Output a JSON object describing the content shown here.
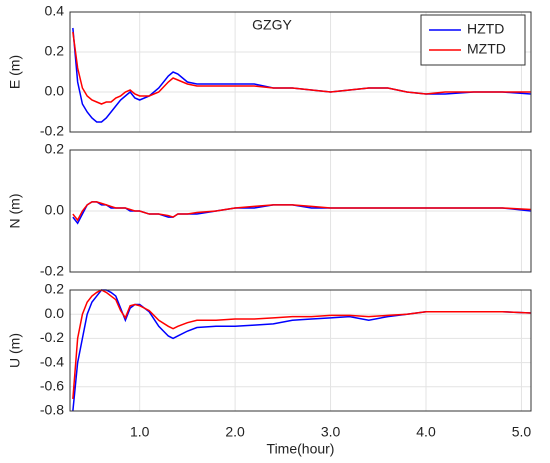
{
  "chart_data": [
    {
      "type": "line",
      "title": "GZGY",
      "ylabel": "E (m)",
      "grid": true,
      "legend": "upper right",
      "xlim": [
        0.27,
        5.1
      ],
      "xticks": [
        {
          "value": 1,
          "label": "1.0"
        },
        {
          "value": 2,
          "label": "2.0"
        },
        {
          "value": 3,
          "label": "3.0"
        },
        {
          "value": 4,
          "label": "4.0"
        },
        {
          "value": 5,
          "label": "5.0"
        }
      ],
      "ylim": [
        -0.2,
        0.4
      ],
      "yticks": [
        -0.2,
        {
          "value": 0,
          "label": "0.0"
        },
        0.2,
        0.4
      ],
      "x": [
        0.3,
        0.35,
        0.4,
        0.45,
        0.5,
        0.55,
        0.6,
        0.65,
        0.7,
        0.75,
        0.8,
        0.85,
        0.9,
        0.95,
        1.0,
        1.1,
        1.2,
        1.3,
        1.35,
        1.4,
        1.5,
        1.6,
        1.8,
        2.0,
        2.2,
        2.4,
        2.6,
        2.8,
        3.0,
        3.2,
        3.4,
        3.6,
        3.8,
        4.0,
        4.2,
        4.5,
        4.8,
        5.1
      ],
      "series": [
        {
          "name": "HZTD",
          "color": "#0000ff",
          "values": [
            0.32,
            0.05,
            -0.06,
            -0.1,
            -0.13,
            -0.15,
            -0.15,
            -0.13,
            -0.1,
            -0.07,
            -0.04,
            -0.02,
            0.0,
            -0.03,
            -0.04,
            -0.02,
            0.02,
            0.08,
            0.1,
            0.09,
            0.05,
            0.04,
            0.04,
            0.04,
            0.04,
            0.02,
            0.02,
            0.01,
            0.0,
            0.01,
            0.02,
            0.02,
            0.0,
            -0.01,
            -0.01,
            0.0,
            0.0,
            -0.01
          ]
        },
        {
          "name": "MZTD",
          "color": "#ff0000",
          "values": [
            0.3,
            0.12,
            0.02,
            -0.02,
            -0.04,
            -0.05,
            -0.06,
            -0.05,
            -0.05,
            -0.03,
            -0.02,
            0.0,
            0.01,
            -0.01,
            -0.02,
            -0.02,
            0.0,
            0.05,
            0.07,
            0.06,
            0.04,
            0.03,
            0.03,
            0.03,
            0.03,
            0.02,
            0.02,
            0.01,
            0.0,
            0.01,
            0.02,
            0.02,
            0.0,
            -0.01,
            0.0,
            0.0,
            0.0,
            0.0
          ]
        }
      ]
    },
    {
      "type": "line",
      "ylabel": "N (m)",
      "grid": true,
      "xlim": [
        0.27,
        5.1
      ],
      "xticks": [
        1,
        2,
        3,
        4,
        5
      ],
      "ylim": [
        -0.2,
        0.2
      ],
      "yticks": [
        -0.2,
        {
          "value": 0,
          "label": "0.0"
        },
        0.2
      ],
      "x": [
        0.3,
        0.35,
        0.4,
        0.45,
        0.5,
        0.55,
        0.6,
        0.65,
        0.7,
        0.75,
        0.8,
        0.85,
        0.9,
        0.95,
        1.0,
        1.1,
        1.2,
        1.3,
        1.35,
        1.4,
        1.5,
        1.6,
        1.8,
        2.0,
        2.2,
        2.4,
        2.6,
        2.8,
        3.0,
        3.2,
        3.4,
        3.6,
        3.8,
        4.0,
        4.2,
        4.5,
        4.8,
        5.1
      ],
      "series": [
        {
          "color": "#0000ff",
          "values": [
            -0.02,
            -0.04,
            -0.01,
            0.02,
            0.03,
            0.03,
            0.02,
            0.02,
            0.01,
            0.01,
            0.01,
            0.01,
            0.0,
            0.0,
            0.0,
            -0.01,
            -0.01,
            -0.02,
            -0.02,
            -0.01,
            -0.01,
            -0.01,
            0.0,
            0.01,
            0.01,
            0.02,
            0.02,
            0.01,
            0.01,
            0.01,
            0.01,
            0.01,
            0.01,
            0.01,
            0.01,
            0.01,
            0.01,
            0.0
          ]
        },
        {
          "color": "#ff0000",
          "values": [
            -0.01,
            -0.03,
            0.0,
            0.02,
            0.03,
            0.03,
            0.025,
            0.02,
            0.015,
            0.01,
            0.01,
            0.01,
            0.005,
            0.0,
            0.0,
            -0.01,
            -0.01,
            -0.015,
            -0.02,
            -0.01,
            -0.01,
            -0.005,
            0.0,
            0.01,
            0.015,
            0.02,
            0.02,
            0.015,
            0.01,
            0.01,
            0.01,
            0.01,
            0.01,
            0.01,
            0.01,
            0.01,
            0.01,
            0.005
          ]
        }
      ]
    },
    {
      "type": "line",
      "ylabel": "U (m)",
      "xlabel": "Time(hour)",
      "grid": true,
      "xlim": [
        0.27,
        5.1
      ],
      "xticks": [
        {
          "value": 1,
          "label": "1.0"
        },
        {
          "value": 2,
          "label": "2.0"
        },
        {
          "value": 3,
          "label": "3.0"
        },
        {
          "value": 4,
          "label": "4.0"
        },
        {
          "value": 5,
          "label": "5.0"
        }
      ],
      "ylim": [
        -0.8,
        0.2
      ],
      "yticks": [
        -0.8,
        -0.6,
        -0.4,
        -0.2,
        {
          "value": 0,
          "label": "0.0"
        },
        0.2
      ],
      "x": [
        0.3,
        0.35,
        0.4,
        0.45,
        0.5,
        0.55,
        0.6,
        0.65,
        0.7,
        0.75,
        0.8,
        0.85,
        0.9,
        0.95,
        1.0,
        1.1,
        1.2,
        1.3,
        1.35,
        1.4,
        1.5,
        1.6,
        1.8,
        2.0,
        2.2,
        2.4,
        2.6,
        2.8,
        3.0,
        3.2,
        3.4,
        3.6,
        3.8,
        4.0,
        4.2,
        4.5,
        4.8,
        5.1
      ],
      "series": [
        {
          "color": "#0000ff",
          "values": [
            -0.8,
            -0.4,
            -0.2,
            0.0,
            0.1,
            0.15,
            0.2,
            0.2,
            0.18,
            0.15,
            0.05,
            -0.05,
            0.05,
            0.08,
            0.08,
            0.02,
            -0.1,
            -0.18,
            -0.2,
            -0.18,
            -0.14,
            -0.11,
            -0.1,
            -0.1,
            -0.09,
            -0.08,
            -0.05,
            -0.04,
            -0.03,
            -0.02,
            -0.05,
            -0.02,
            0.0,
            0.02,
            0.02,
            0.02,
            0.02,
            0.01
          ]
        },
        {
          "color": "#ff0000",
          "values": [
            -0.7,
            -0.2,
            0.0,
            0.1,
            0.15,
            0.18,
            0.2,
            0.18,
            0.15,
            0.12,
            0.03,
            -0.03,
            0.07,
            0.08,
            0.07,
            0.03,
            -0.05,
            -0.1,
            -0.12,
            -0.1,
            -0.07,
            -0.05,
            -0.05,
            -0.04,
            -0.04,
            -0.03,
            -0.02,
            -0.02,
            -0.01,
            -0.01,
            -0.02,
            -0.01,
            0.0,
            0.02,
            0.02,
            0.02,
            0.02,
            0.01
          ]
        }
      ]
    }
  ]
}
